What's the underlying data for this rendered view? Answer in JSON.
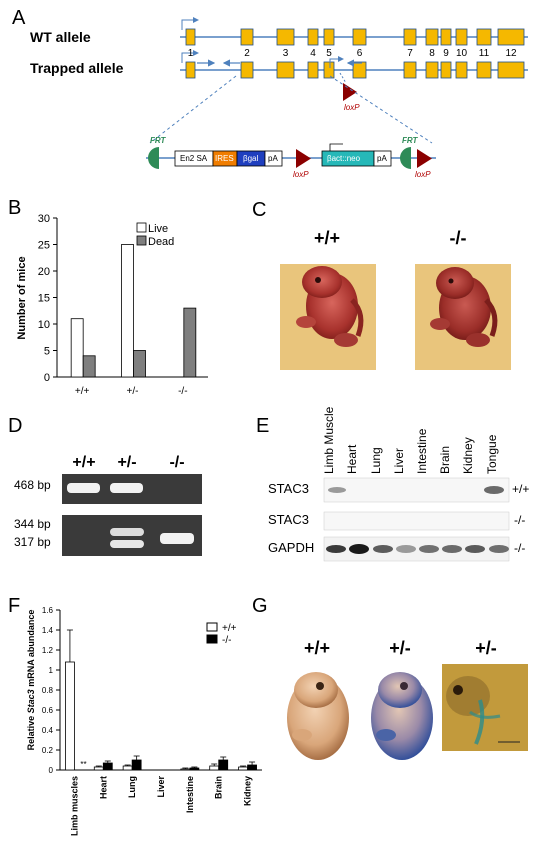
{
  "panels": {
    "A": {
      "letter": "A",
      "wt_label": "WT allele",
      "trapped_label": "Trapped allele",
      "exons": [
        "1",
        "2",
        "3",
        "4",
        "5",
        "6",
        "7",
        "8",
        "9",
        "10",
        "11",
        "12"
      ],
      "loxp": "loxP",
      "frt": "FRT",
      "cassette": [
        "En2 SA",
        "IRES",
        "βgal",
        "pA",
        "βact::neo",
        "pA"
      ]
    },
    "B": {
      "letter": "B",
      "ylabel": "Number of mice",
      "legend": [
        "Live",
        "Dead"
      ]
    },
    "C": {
      "letter": "C",
      "labels": [
        "+/+",
        "-/-"
      ]
    },
    "D": {
      "letter": "D",
      "lanes": [
        "+/+",
        "+/-",
        "-/-"
      ],
      "bp": [
        "468 bp",
        "344 bp",
        "317 bp"
      ]
    },
    "E": {
      "letter": "E",
      "tissues": [
        "Limb Muscle",
        "Heart",
        "Lung",
        "Liver",
        "Intestine",
        "Brain",
        "Kidney",
        "Tongue"
      ],
      "rows": [
        {
          "name": "STAC3",
          "genotype": "+/+"
        },
        {
          "name": "STAC3",
          "genotype": "-/-"
        },
        {
          "name": "GAPDH",
          "genotype": "-/-"
        }
      ]
    },
    "F": {
      "letter": "F",
      "ylabel_pre": "Relative ",
      "ylabel_gene": "Stac3",
      "ylabel_post": " mRNA abundance",
      "legend": [
        "+/+",
        "-/-"
      ],
      "significance": "**"
    },
    "G": {
      "letter": "G",
      "labels": [
        "+/+",
        "+/-",
        "+/-"
      ]
    }
  },
  "chart_data": [
    {
      "type": "bar",
      "panel": "B",
      "categories": [
        "+/+",
        "+/-",
        "-/-"
      ],
      "series": [
        {
          "name": "Live",
          "values": [
            11,
            25,
            0
          ],
          "color": "#ffffff"
        },
        {
          "name": "Dead",
          "values": [
            4,
            5,
            13
          ],
          "color": "#7f7f7f"
        }
      ],
      "ylabel": "Number of mice",
      "ylim": [
        0,
        30
      ],
      "yticks": [
        0,
        5,
        10,
        15,
        20,
        25,
        30
      ],
      "legend_position": "top-right"
    },
    {
      "type": "bar",
      "panel": "F",
      "categories": [
        "Limb muscles",
        "Heart",
        "Lung",
        "Liver",
        "Intestine",
        "Brain",
        "Kidney"
      ],
      "series": [
        {
          "name": "+/+",
          "values": [
            1.08,
            0.03,
            0.04,
            0.0,
            0.01,
            0.04,
            0.03
          ],
          "errors": [
            0.32,
            0.01,
            0.01,
            0.0,
            0.01,
            0.02,
            0.01
          ],
          "color": "#ffffff"
        },
        {
          "name": "-/-",
          "values": [
            0.0,
            0.07,
            0.1,
            0.0,
            0.02,
            0.1,
            0.05
          ],
          "errors": [
            0.0,
            0.02,
            0.04,
            0.0,
            0.01,
            0.03,
            0.03
          ],
          "color": "#000000"
        }
      ],
      "ylim": [
        0,
        1.6
      ],
      "yticks": [
        0,
        0.2,
        0.4,
        0.6,
        0.8,
        1.0,
        1.2,
        1.4,
        1.6
      ],
      "ytick_labels": [
        "0",
        "0.2",
        "0.4",
        "0.6",
        "0.8",
        "1",
        "1.2",
        "1.4",
        "1.6"
      ],
      "legend_position": "top-right"
    }
  ],
  "colors": {
    "exon": "#f5b800",
    "exon_border": "#1f4e8c",
    "line": "#4f81bd",
    "loxp": "#8b0000",
    "frt": "#2e8b57",
    "ires": "#f07d00",
    "bgal": "#1f3fbf",
    "neo": "#26b8b8"
  }
}
